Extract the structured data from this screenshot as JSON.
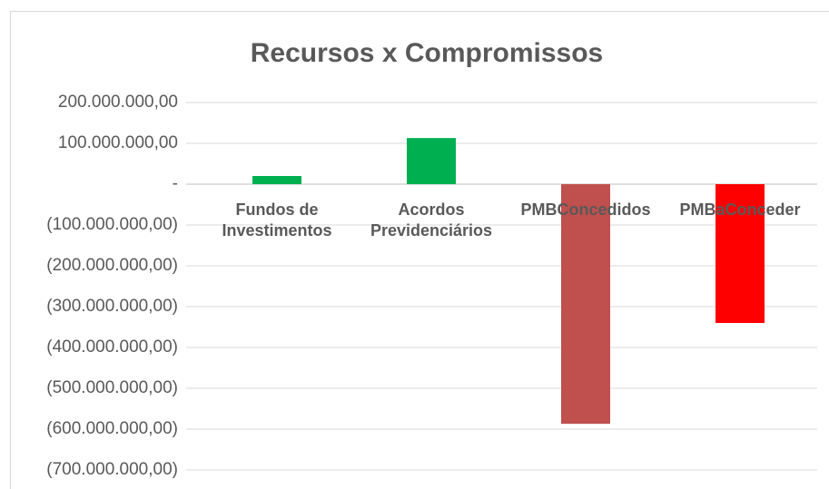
{
  "chart_data": {
    "type": "bar",
    "title": "Recursos x Compromissos",
    "categories": [
      "Fundos de Investimentos",
      "Acordos Previdenciários",
      "PMBConcedidos",
      "PMBaConceder"
    ],
    "values": [
      20000000,
      113000000,
      -587000000,
      -340000000
    ],
    "colors": [
      "#00b050",
      "#00b050",
      "#c0504d",
      "#ff0000"
    ],
    "ylim": [
      -700000000,
      200000000
    ],
    "yticks": [
      {
        "value": 200000000,
        "label": "200.000.000,00"
      },
      {
        "value": 100000000,
        "label": "100.000.000,00"
      },
      {
        "value": 0,
        "label": "-"
      },
      {
        "value": -100000000,
        "label": "(100.000.000,00)"
      },
      {
        "value": -200000000,
        "label": "(200.000.000,00)"
      },
      {
        "value": -300000000,
        "label": "(300.000.000,00)"
      },
      {
        "value": -400000000,
        "label": "(400.000.000,00)"
      },
      {
        "value": -500000000,
        "label": "(500.000.000,00)"
      },
      {
        "value": -600000000,
        "label": "(600.000.000,00)"
      },
      {
        "value": -700000000,
        "label": "(700.000.000,00)"
      }
    ],
    "grid": true
  }
}
